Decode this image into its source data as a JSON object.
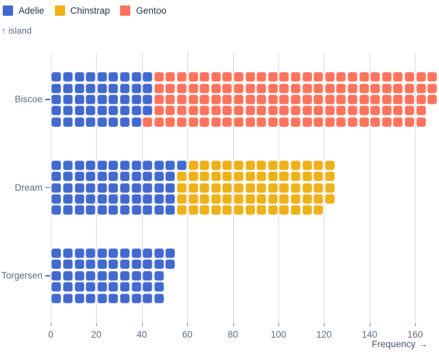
{
  "legend": {
    "items": [
      {
        "label": "Adelie",
        "color": "#4269d0"
      },
      {
        "label": "Chinstrap",
        "color": "#efb118"
      },
      {
        "label": "Gentoo",
        "color": "#ff725c"
      }
    ]
  },
  "chart_data": {
    "type": "waffle",
    "orientation": "horizontal",
    "unit": 1,
    "rows_per_category": 5,
    "x_units_per_column": 5,
    "title": "",
    "ylabel": "↑ island",
    "xlabel": "Frequency →",
    "categories": [
      "Biscoe",
      "Dream",
      "Torgersen"
    ],
    "series": [
      {
        "name": "Adelie",
        "color": "#4269d0",
        "values": [
          44,
          56,
          52
        ]
      },
      {
        "name": "Chinstrap",
        "color": "#efb118",
        "values": [
          0,
          68,
          0
        ]
      },
      {
        "name": "Gentoo",
        "color": "#ff725c",
        "values": [
          124,
          0,
          0
        ]
      }
    ],
    "totals": [
      168,
      124,
      52
    ],
    "x_ticks": [
      0,
      20,
      40,
      60,
      80,
      100,
      120,
      140,
      160
    ],
    "xlim": [
      0,
      170
    ],
    "grid": true,
    "legend_position": "top-left"
  },
  "colors": {
    "background": "#ffffff",
    "grid": "#dadce1",
    "tick_mark": "#8a93a4",
    "axis_text": "#5c6b81",
    "legend_text": "#273549"
  }
}
